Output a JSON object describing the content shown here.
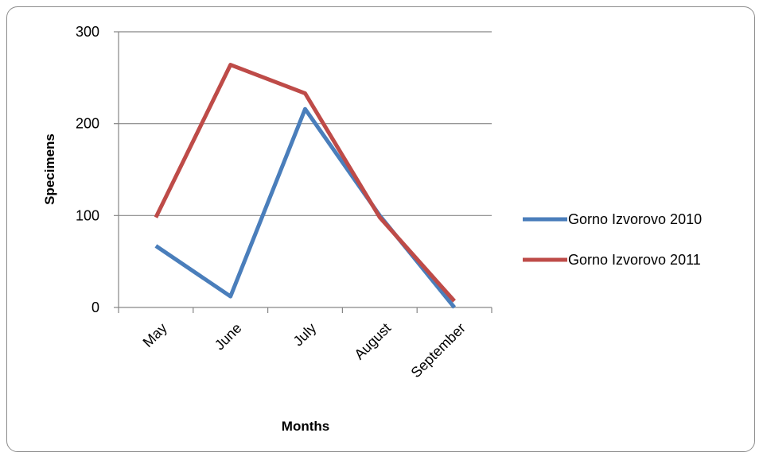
{
  "chart_data": {
    "type": "line",
    "categories": [
      "May",
      "June",
      "July",
      "August",
      "September"
    ],
    "series": [
      {
        "name": "Gorno Izvorovo 2010",
        "color": "#4a7ebb",
        "values": [
          67,
          12,
          216,
          100,
          0
        ]
      },
      {
        "name": "Gorno Izvorovo 2011",
        "color": "#be4b48",
        "values": [
          98,
          264,
          233,
          98,
          7
        ]
      }
    ],
    "title": "",
    "xlabel": "Months",
    "ylabel": "Specimens",
    "ylim": [
      0,
      300
    ],
    "yticks": [
      "0",
      "100",
      "200",
      "300"
    ],
    "grid": true,
    "legend_position": "right"
  }
}
